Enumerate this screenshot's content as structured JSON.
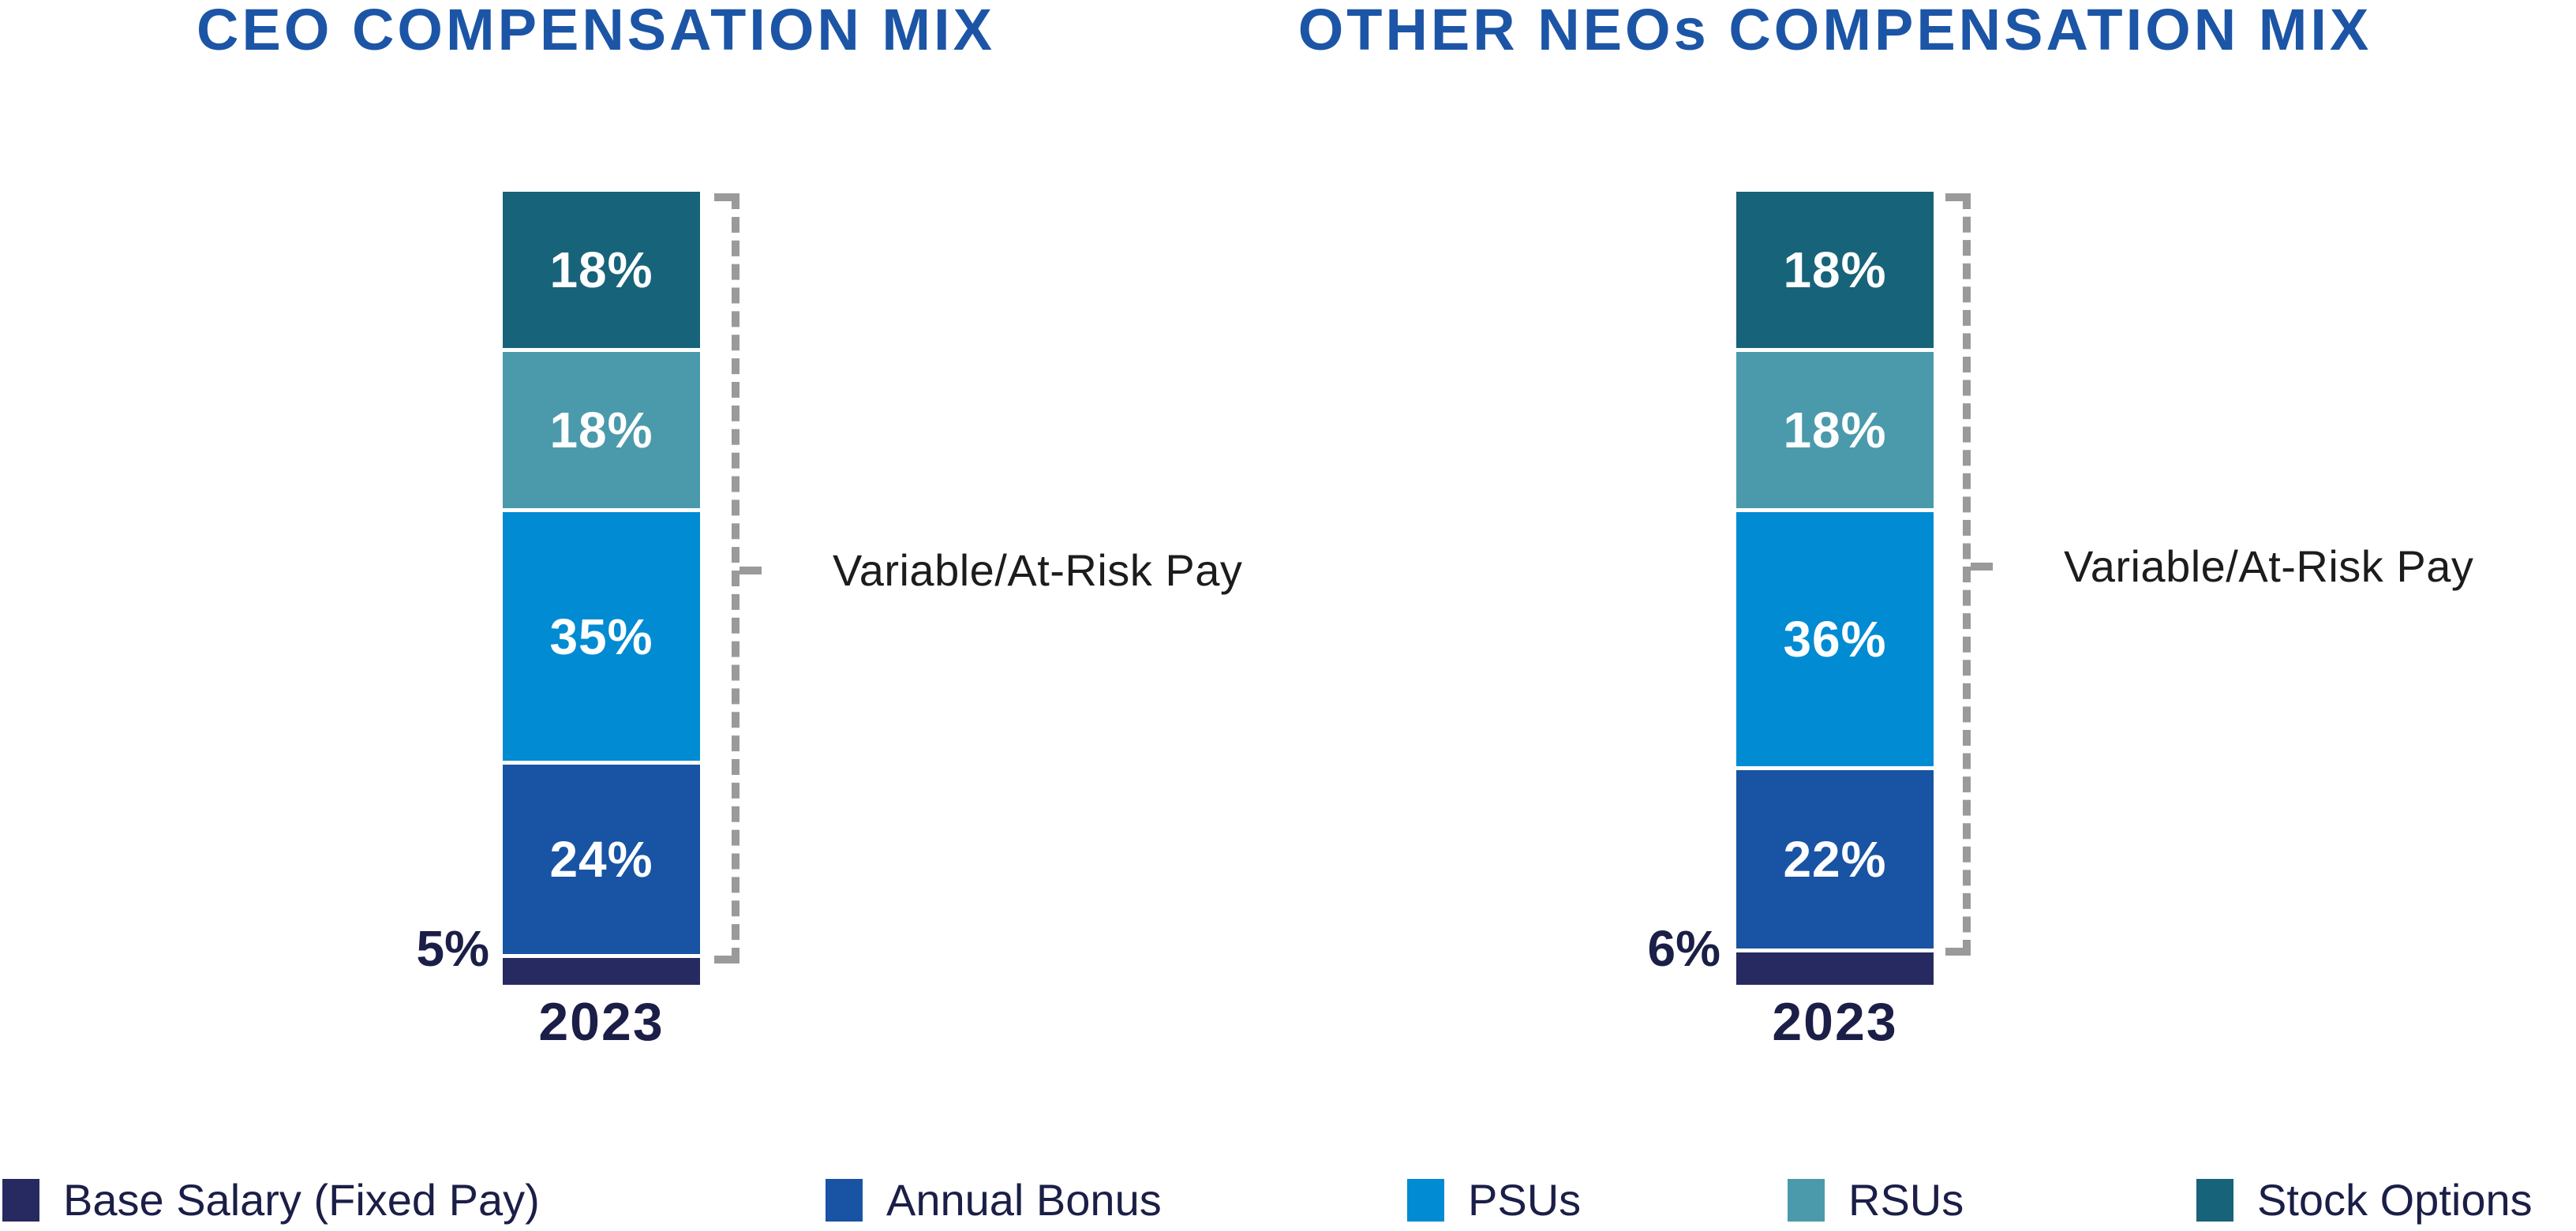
{
  "colors": {
    "title_blue": "#1C55A6",
    "ink_navy": "#1B1F47",
    "annotation_text": "#1C1C1C",
    "bracket_gray": "#9A9A9A",
    "base_salary_navy": "#262A60",
    "annual_bonus_blue": "#1854A3",
    "psu_blue": "#008BD2",
    "rsu_teal": "#4A9AAC",
    "stock_option_teal": "#17637A"
  },
  "chart_data": [
    {
      "type": "bar",
      "stacked": true,
      "title": "CEO COMPENSATION MIX",
      "unit": "%",
      "categories": [
        "2023"
      ],
      "ylim": [
        0,
        100
      ],
      "grid": false,
      "legend_position": "bottom",
      "series": [
        {
          "name": "Base Salary (Fixed Pay)",
          "values": [
            5
          ],
          "label": "5%",
          "color": "#262A60",
          "label_position": "outside-left"
        },
        {
          "name": "Annual Bonus",
          "values": [
            24
          ],
          "label": "24%",
          "color": "#1854A3",
          "label_position": "inside"
        },
        {
          "name": "PSUs",
          "values": [
            35
          ],
          "label": "35%",
          "color": "#008BD2",
          "label_position": "inside"
        },
        {
          "name": "RSUs",
          "values": [
            18
          ],
          "label": "18%",
          "color": "#4A9AAC",
          "label_position": "inside"
        },
        {
          "name": "Stock Options",
          "values": [
            18
          ],
          "label": "18%",
          "color": "#17637A",
          "label_position": "inside"
        }
      ],
      "annotation": {
        "text": "Variable/At-Risk Pay",
        "style": "dashed-bracket",
        "covers": [
          "Annual Bonus",
          "PSUs",
          "RSUs",
          "Stock Options"
        ]
      }
    },
    {
      "type": "bar",
      "stacked": true,
      "title": "OTHER NEOs COMPENSATION MIX",
      "unit": "%",
      "categories": [
        "2023"
      ],
      "ylim": [
        0,
        100
      ],
      "grid": false,
      "legend_position": "bottom",
      "series": [
        {
          "name": "Base Salary (Fixed Pay)",
          "values": [
            6
          ],
          "label": "6%",
          "color": "#262A60",
          "label_position": "outside-left"
        },
        {
          "name": "Annual Bonus",
          "values": [
            22
          ],
          "label": "22%",
          "color": "#1854A3",
          "label_position": "inside"
        },
        {
          "name": "PSUs",
          "values": [
            36
          ],
          "label": "36%",
          "color": "#008BD2",
          "label_position": "inside"
        },
        {
          "name": "RSUs",
          "values": [
            18
          ],
          "label": "18%",
          "color": "#4A9AAC",
          "label_position": "inside"
        },
        {
          "name": "Stock Options",
          "values": [
            18
          ],
          "label": "18%",
          "color": "#17637A",
          "label_position": "inside"
        }
      ],
      "annotation": {
        "text": "Variable/At-Risk Pay",
        "style": "dashed-bracket",
        "covers": [
          "Annual Bonus",
          "PSUs",
          "RSUs",
          "Stock Options"
        ]
      }
    }
  ],
  "legend": {
    "items": [
      {
        "label": "Base Salary (Fixed Pay)",
        "color": "#262A60"
      },
      {
        "label": "Annual Bonus",
        "color": "#1854A3"
      },
      {
        "label": "PSUs",
        "color": "#008BD2"
      },
      {
        "label": "RSUs",
        "color": "#4A9AAC"
      },
      {
        "label": "Stock Options",
        "color": "#17637A"
      }
    ]
  }
}
